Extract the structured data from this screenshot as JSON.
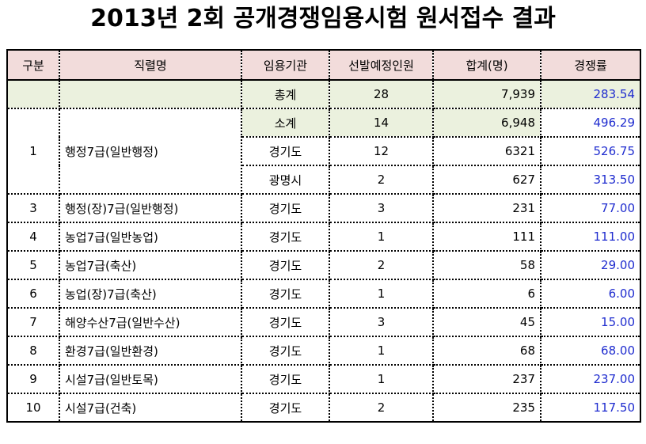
{
  "title": "2013년 2회 공개경쟁임용시험 원서접수 결과",
  "headers": [
    "구분",
    "직렬명",
    "임용기관",
    "선발예정인원",
    "합계(명)",
    "경쟁률"
  ],
  "total": {
    "agency": "총계",
    "quota": "28",
    "applicants": "7,939",
    "ratio": "283.54"
  },
  "group1": {
    "no": "1",
    "name": "행정7급(일반행정)",
    "rows": [
      {
        "agency": "소계",
        "quota": "14",
        "applicants": "6,948",
        "ratio": "496.29"
      },
      {
        "agency": "경기도",
        "quota": "12",
        "applicants": "6321",
        "ratio": "526.75"
      },
      {
        "agency": "광명시",
        "quota": "2",
        "applicants": "627",
        "ratio": "313.50"
      }
    ]
  },
  "rows": [
    {
      "no": "3",
      "name": "행정(장)7급(일반행정)",
      "agency": "경기도",
      "quota": "3",
      "applicants": "231",
      "ratio": "77.00"
    },
    {
      "no": "4",
      "name": "농업7급(일반농업)",
      "agency": "경기도",
      "quota": "1",
      "applicants": "111",
      "ratio": "111.00"
    },
    {
      "no": "5",
      "name": "농업7급(축산)",
      "agency": "경기도",
      "quota": "2",
      "applicants": "58",
      "ratio": "29.00"
    },
    {
      "no": "6",
      "name": "농업(장)7급(축산)",
      "agency": "경기도",
      "quota": "1",
      "applicants": "6",
      "ratio": "6.00"
    },
    {
      "no": "7",
      "name": "해양수산7급(일반수산)",
      "agency": "경기도",
      "quota": "3",
      "applicants": "45",
      "ratio": "15.00"
    },
    {
      "no": "8",
      "name": "환경7급(일반환경)",
      "agency": "경기도",
      "quota": "1",
      "applicants": "68",
      "ratio": "68.00"
    },
    {
      "no": "9",
      "name": "시설7급(일반토목)",
      "agency": "경기도",
      "quota": "1",
      "applicants": "237",
      "ratio": "237.00"
    },
    {
      "no": "10",
      "name": "시설7급(건축)",
      "agency": "경기도",
      "quota": "2",
      "applicants": "235",
      "ratio": "117.50"
    }
  ]
}
